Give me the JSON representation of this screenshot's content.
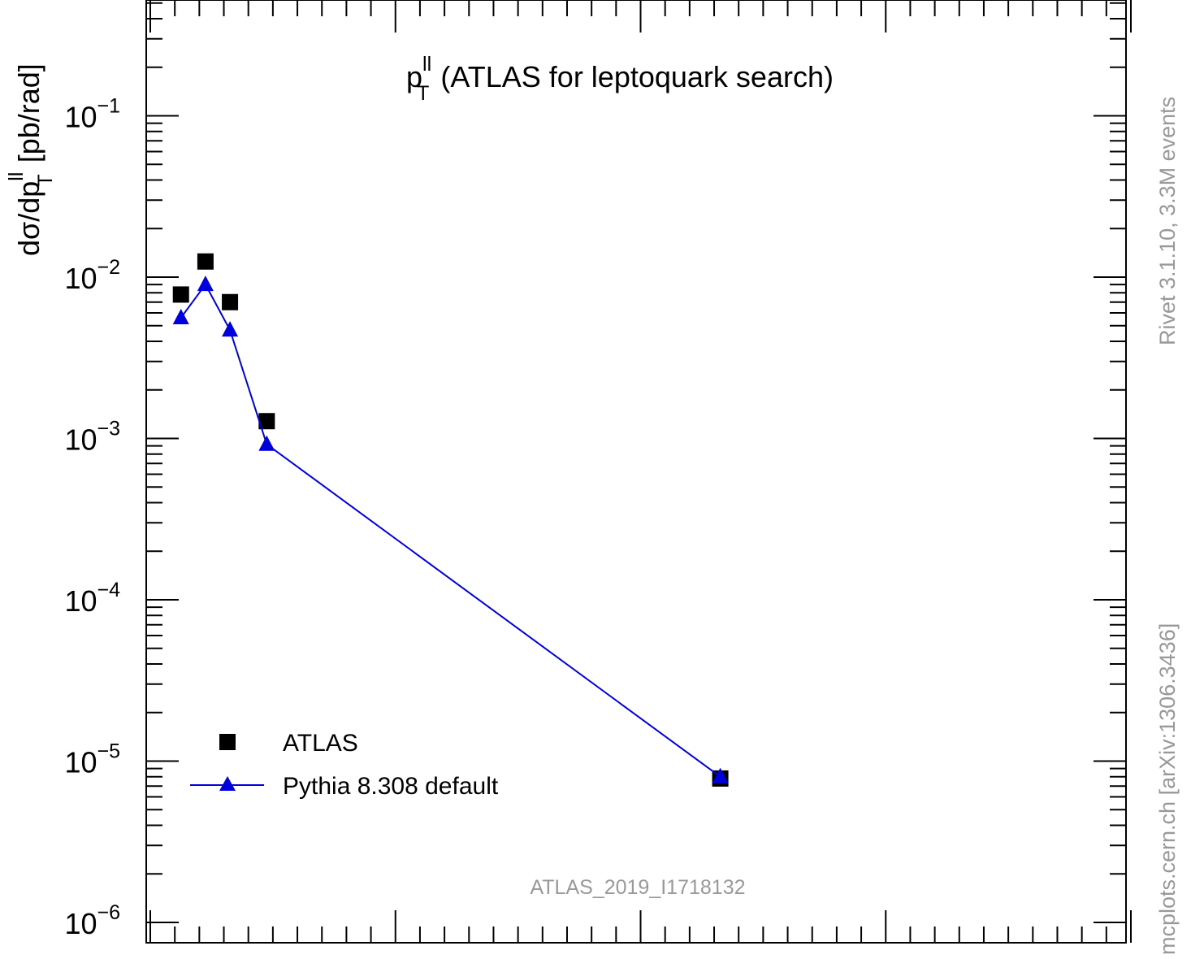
{
  "chart_data": {
    "type": "scatter",
    "title_main": "p",
    "title_sup": "ll",
    "title_sub": "T",
    "title_rest": " (ATLAS for leptoquark search)",
    "ylabel_main": "dσ/dp",
    "ylabel_sup": "ll",
    "ylabel_sub": "T",
    "ylabel_rest": " [pb/rad]",
    "yscale": "log",
    "ylim": [
      1e-06,
      0.5
    ],
    "ytick_values": [
      1e-06,
      1e-05,
      0.0001,
      0.001,
      0.01,
      0.1
    ],
    "ytick_labels": [
      {
        "base": "10",
        "exp": "−6"
      },
      {
        "base": "10",
        "exp": "−5"
      },
      {
        "base": "10",
        "exp": "−4"
      },
      {
        "base": "10",
        "exp": "−3"
      },
      {
        "base": "10",
        "exp": "−2"
      },
      {
        "base": "10",
        "exp": "−1"
      }
    ],
    "xlim": [
      0,
      4000
    ],
    "x_major_ticks": [
      0,
      1000,
      2000,
      3000,
      4000
    ],
    "x_minor_step": 100,
    "x_tick_labels_shown": false,
    "legend_position": "bottom-left",
    "series": [
      {
        "name": "ATLAS",
        "marker": "square",
        "color": "#000000",
        "line": false,
        "x": [
          125,
          225,
          325,
          475,
          2325
        ],
        "y": [
          0.0078,
          0.0125,
          0.007,
          0.00128,
          7.8e-06
        ]
      },
      {
        "name": "Pythia 8.308 default",
        "marker": "triangle",
        "color": "#0000dd",
        "line": true,
        "x": [
          125,
          225,
          325,
          475,
          2325
        ],
        "y": [
          0.0056,
          0.009,
          0.0047,
          0.00092,
          8e-06
        ]
      }
    ],
    "analysis_label": "ATLAS_2019_I1718132",
    "side_text_top": "Rivet 3.1.10,  3.3M events",
    "side_text_bottom": "mcplots.cern.ch [arXiv:1306.3436]"
  }
}
